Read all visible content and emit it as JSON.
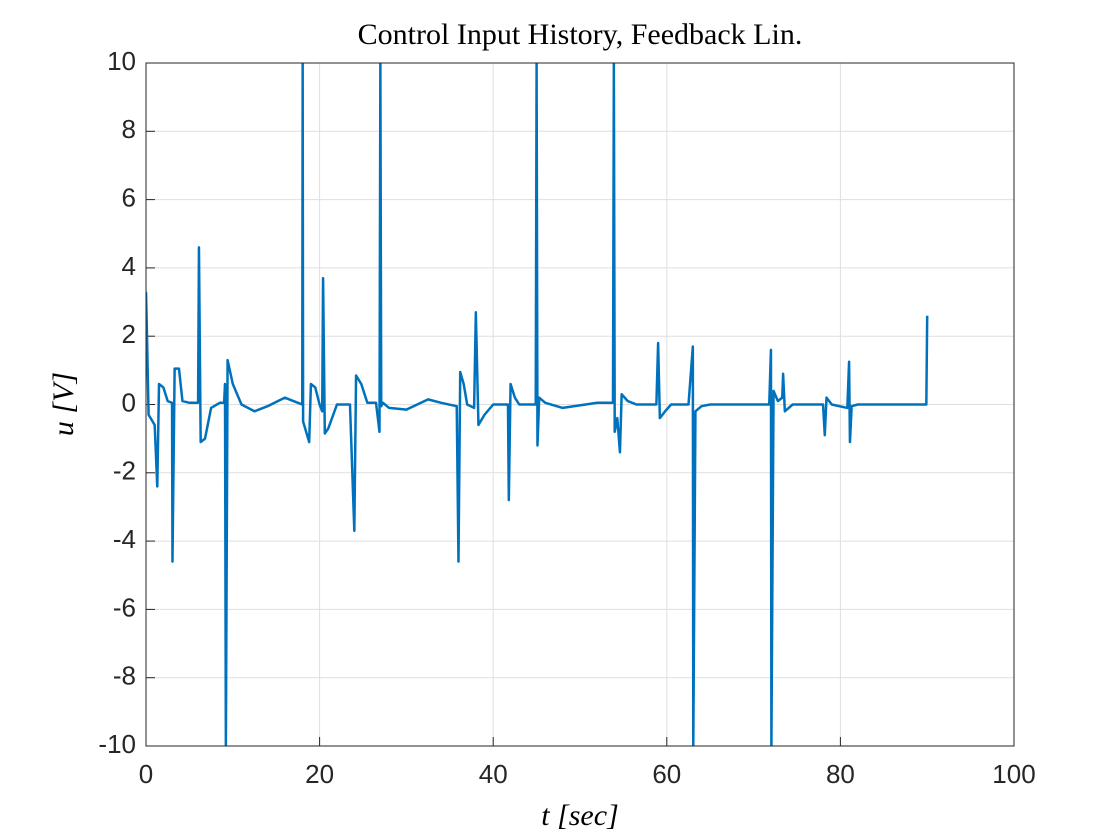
{
  "chart_data": {
    "type": "line",
    "title": "Control Input History, Feedback Lin.",
    "xlabel": "t [sec]",
    "ylabel": "u [V]",
    "color": "#0072bd",
    "grid": true,
    "xlim": [
      0,
      100
    ],
    "xticks": [
      0,
      20,
      40,
      60,
      80,
      100
    ],
    "ylim": [
      -10,
      10
    ],
    "yticks": [
      -10,
      -8,
      -6,
      -4,
      -2,
      0,
      2,
      4,
      6,
      8,
      10
    ],
    "x": [
      0,
      0.1,
      0.3,
      1,
      1.3,
      1.5,
      2,
      2.5,
      3,
      3.05,
      3.3,
      3.8,
      4.2,
      5,
      6,
      6.1,
      6.3,
      6.8,
      7.5,
      8.5,
      9,
      9.1,
      9.2,
      9.4,
      10,
      11,
      12.5,
      14,
      16,
      17.5,
      18,
      18.05,
      18.1,
      18.8,
      19,
      19.5,
      20,
      20.3,
      20.4,
      20.6,
      21,
      22,
      23.5,
      24,
      24.2,
      24.8,
      25.5,
      26.5,
      26.9,
      27,
      27.1,
      27.3,
      28,
      30,
      32.5,
      34,
      35.8,
      36,
      36.2,
      36.6,
      37,
      37.8,
      38,
      38.3,
      39,
      40,
      41.7,
      41.8,
      42,
      42.5,
      43,
      44.9,
      45,
      45.1,
      45.3,
      46,
      48,
      52,
      53.8,
      53.9,
      54,
      54.3,
      54.6,
      54.8,
      55.5,
      56.5,
      58.8,
      59,
      59.2,
      59.8,
      60.5,
      62.5,
      63,
      63.05,
      63.3,
      64,
      65,
      71.8,
      72,
      72.05,
      72.3,
      72.8,
      73.3,
      73.4,
      73.6,
      74.5,
      78,
      78.2,
      78.4,
      79,
      80.8,
      81,
      81.1,
      81.3,
      82,
      89.9,
      90
    ],
    "values": [
      3.3,
      2.2,
      -0.3,
      -0.6,
      -2.4,
      0.6,
      0.5,
      0.1,
      0.05,
      -4.6,
      1.05,
      1.05,
      0.1,
      0.05,
      0.05,
      4.6,
      -1.1,
      -1.0,
      -0.1,
      0.05,
      0.05,
      0.6,
      -10,
      1.3,
      0.6,
      0,
      -0.2,
      -0.05,
      0.2,
      0.05,
      0,
      10,
      -0.5,
      -1.1,
      0.6,
      0.5,
      0,
      -0.2,
      3.7,
      -0.85,
      -0.7,
      0,
      0,
      -3.7,
      0.85,
      0.6,
      0.05,
      0.05,
      -0.8,
      10,
      -0.05,
      0.05,
      -0.1,
      -0.15,
      0.15,
      0.05,
      -0.05,
      -4.6,
      0.95,
      0.6,
      0,
      -0.1,
      2.7,
      -0.6,
      -0.3,
      0,
      0,
      -2.8,
      0.6,
      0.2,
      0,
      0,
      10,
      -1.2,
      0.2,
      0.05,
      -0.1,
      0.05,
      0.05,
      10,
      -0.8,
      -0.4,
      -1.4,
      0.3,
      0.1,
      0,
      0,
      1.8,
      -0.4,
      -0.2,
      0,
      0,
      1.7,
      -10,
      -0.2,
      -0.05,
      0,
      0,
      1.6,
      -10,
      0.4,
      0.1,
      0.2,
      0.9,
      -0.2,
      0,
      0,
      -0.9,
      0.2,
      0,
      -0.1,
      1.25,
      -1.1,
      -0.05,
      0,
      0,
      2.6
    ]
  }
}
